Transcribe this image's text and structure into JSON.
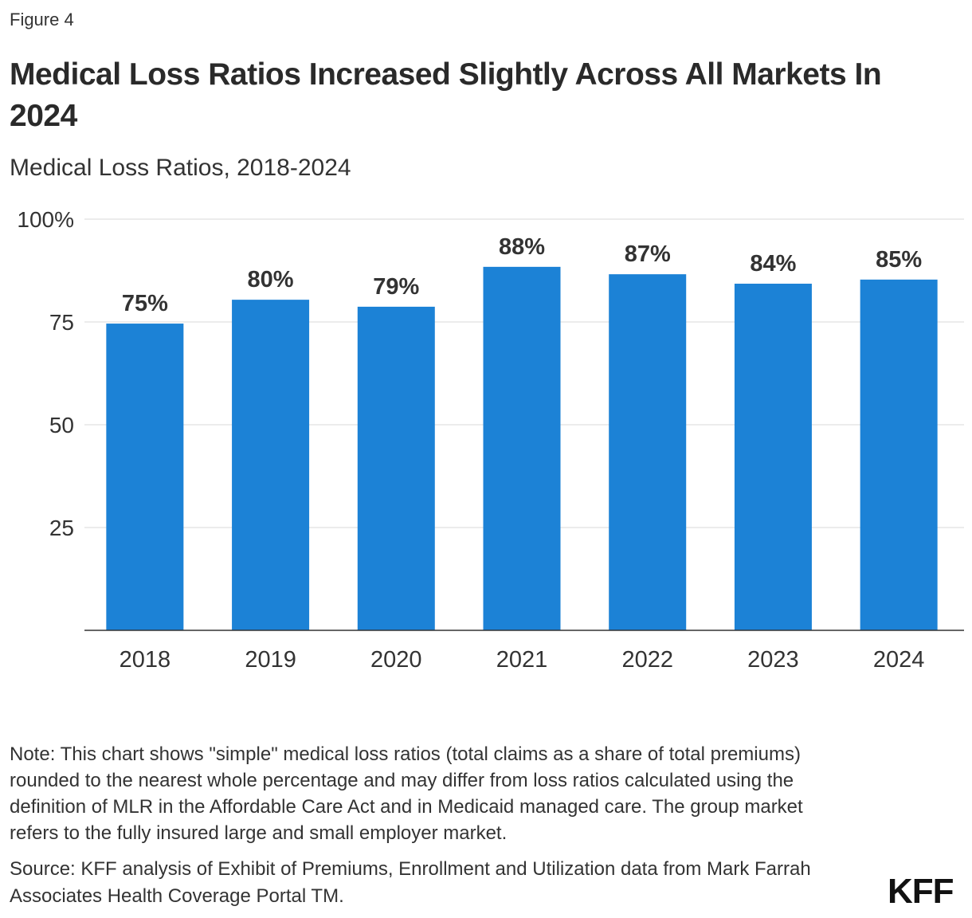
{
  "figure_label": "Figure 4",
  "title": "Medical Loss Ratios Increased Slightly Across All Markets In 2024",
  "subtitle": "Medical Loss Ratios, 2018-2024",
  "note": "Note: This chart shows \"simple\" medical loss ratios (total claims as a share of total premiums) rounded to the nearest whole percentage and may differ from loss ratios calculated using the definition of MLR in the Affordable Care Act and in Medicaid managed care. The group market refers to the fully insured large and small employer market.",
  "source": "Source: KFF analysis of Exhibit of Premiums, Enrollment and Utilization data from Mark Farrah Associates Health Coverage Portal TM.",
  "logo": "KFF",
  "chart_data": {
    "type": "bar",
    "categories": [
      "2018",
      "2019",
      "2020",
      "2021",
      "2022",
      "2023",
      "2024"
    ],
    "values": [
      74.6,
      80.4,
      78.7,
      88.4,
      86.6,
      84.3,
      85.3
    ],
    "data_labels": [
      "75%",
      "80%",
      "79%",
      "88%",
      "87%",
      "84%",
      "85%"
    ],
    "yticks": [
      {
        "value": 25,
        "label": "25"
      },
      {
        "value": 50,
        "label": "50"
      },
      {
        "value": 75,
        "label": "75"
      },
      {
        "value": 100,
        "label": "100%"
      }
    ],
    "ylim": [
      0,
      100
    ],
    "grid": true,
    "bar_color": "#1c82d6"
  }
}
